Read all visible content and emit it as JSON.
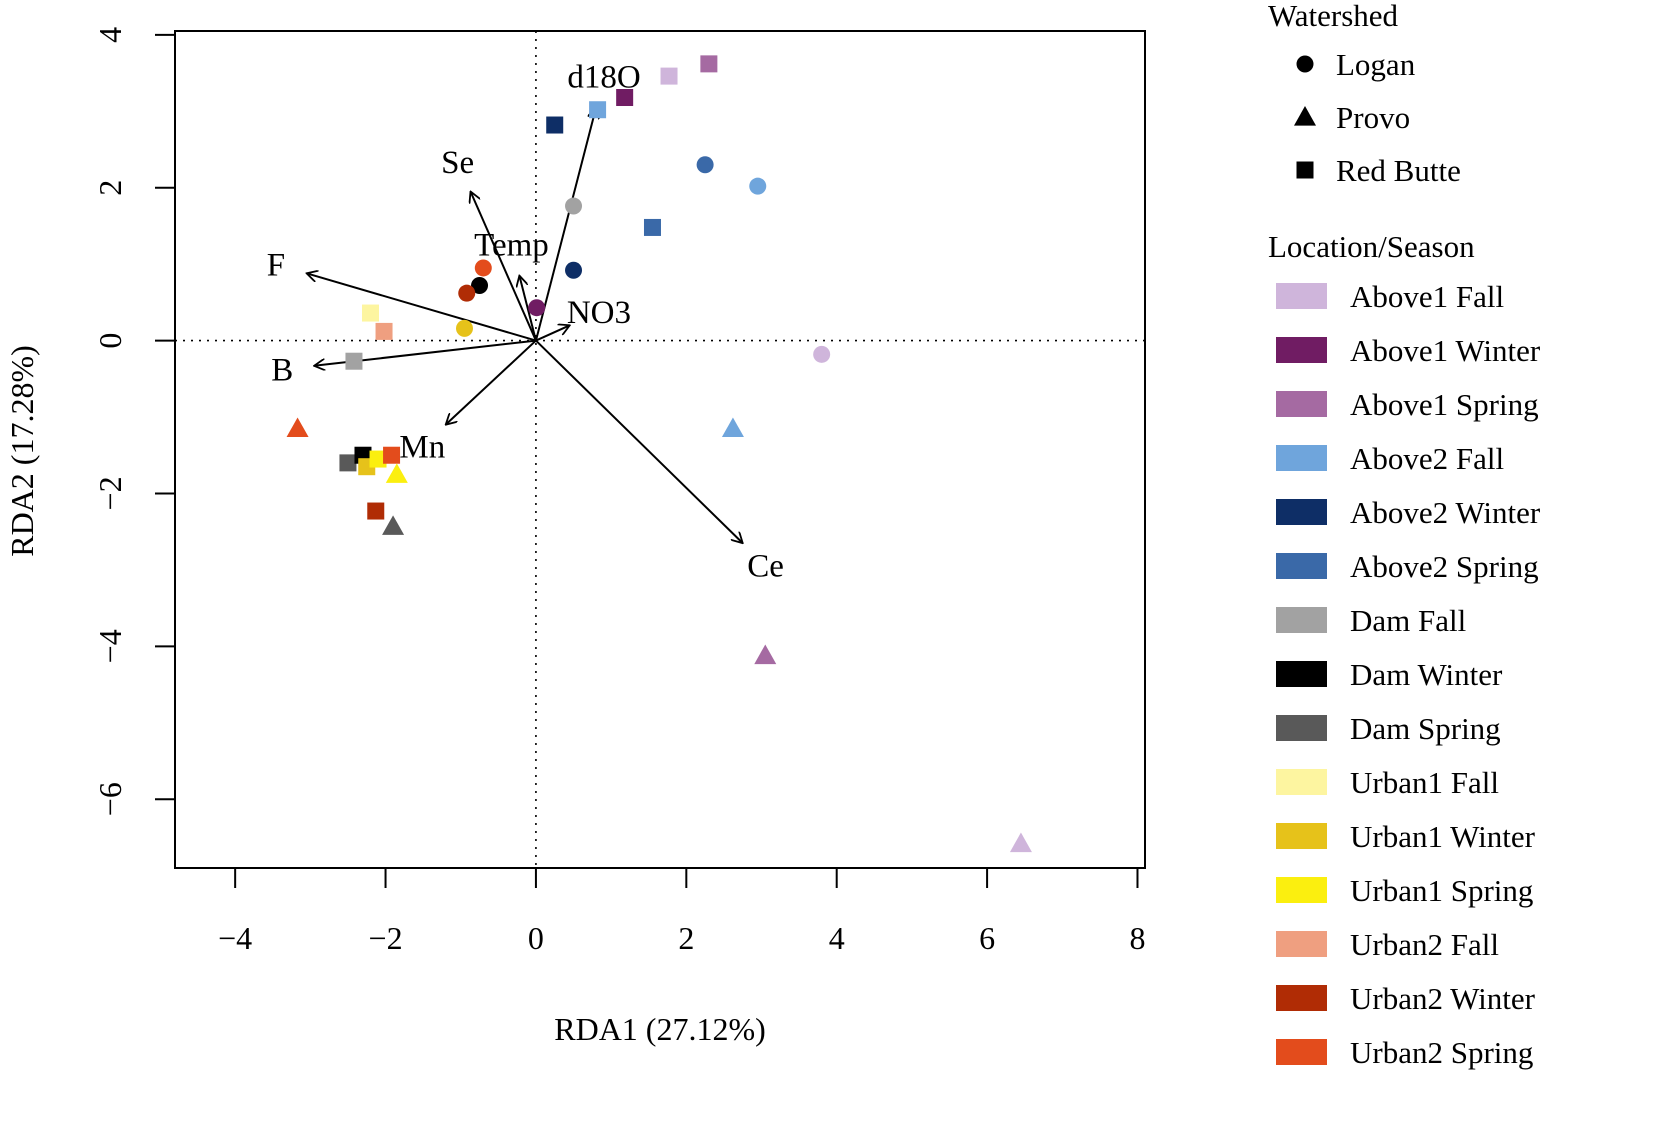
{
  "chart_data": {
    "type": "scatter",
    "subtype": "RDA biplot",
    "xlabel": "RDA1 (27.12%)",
    "ylabel": "RDA2 (17.28%)",
    "xlim": [
      -4.8,
      8.1
    ],
    "ylim": [
      -6.9,
      4.05
    ],
    "xticks": [
      -4,
      -2,
      0,
      2,
      4,
      6,
      8
    ],
    "yticks": [
      -6,
      -4,
      -2,
      0,
      2,
      4
    ],
    "zero_lines": "dotted",
    "watershed_legend": {
      "title": "Watershed",
      "items": [
        {
          "label": "Logan",
          "shape": "circle"
        },
        {
          "label": "Provo",
          "shape": "triangle"
        },
        {
          "label": "Red Butte",
          "shape": "square"
        }
      ]
    },
    "location_legend": {
      "title": "Location/Season",
      "items": [
        {
          "label": "Above1 Fall",
          "color": "#cfb5db"
        },
        {
          "label": "Above1 Winter",
          "color": "#701c63"
        },
        {
          "label": "Above1 Spring",
          "color": "#a56aa2"
        },
        {
          "label": "Above2 Fall",
          "color": "#6fa5dc"
        },
        {
          "label": "Above2 Winter",
          "color": "#0e2e66"
        },
        {
          "label": "Above2 Spring",
          "color": "#3a69a8"
        },
        {
          "label": "Dam Fall",
          "color": "#a2a2a2"
        },
        {
          "label": "Dam Winter",
          "color": "#000000"
        },
        {
          "label": "Dam Spring",
          "color": "#595959"
        },
        {
          "label": "Urban1 Fall",
          "color": "#fdf5a0"
        },
        {
          "label": "Urban1 Winter",
          "color": "#e6c21a"
        },
        {
          "label": "Urban1 Spring",
          "color": "#fbef0f"
        },
        {
          "label": "Urban2 Fall",
          "color": "#ef9f80"
        },
        {
          "label": "Urban2 Winter",
          "color": "#b02c05"
        },
        {
          "label": "Urban2 Spring",
          "color": "#e34c1c"
        }
      ]
    },
    "vectors": [
      {
        "label": "d18O",
        "x": 0.8,
        "y": 3.05
      },
      {
        "label": "Se",
        "x": -0.87,
        "y": 1.95
      },
      {
        "label": "Temp",
        "x": -0.22,
        "y": 0.85
      },
      {
        "label": "F",
        "x": -3.05,
        "y": 0.88
      },
      {
        "label": "NO3",
        "x": 0.45,
        "y": 0.2
      },
      {
        "label": "B",
        "x": -2.95,
        "y": -0.33
      },
      {
        "label": "Mn",
        "x": -1.2,
        "y": -1.1
      },
      {
        "label": "Ce",
        "x": 2.75,
        "y": -2.65
      }
    ],
    "points": [
      {
        "watershed": "Red Butte",
        "group": "Above1 Fall",
        "x": 1.77,
        "y": 3.46
      },
      {
        "watershed": "Red Butte",
        "group": "Above1 Spring",
        "x": 2.3,
        "y": 3.62
      },
      {
        "watershed": "Red Butte",
        "group": "Above1 Winter",
        "x": 1.18,
        "y": 3.18
      },
      {
        "watershed": "Red Butte",
        "group": "Above2 Fall",
        "x": 0.82,
        "y": 3.02
      },
      {
        "watershed": "Red Butte",
        "group": "Above2 Winter",
        "x": 0.25,
        "y": 2.82
      },
      {
        "watershed": "Red Butte",
        "group": "Above2 Spring",
        "x": 1.55,
        "y": 1.48
      },
      {
        "watershed": "Red Butte",
        "group": "Urban1 Fall",
        "x": -2.2,
        "y": 0.36
      },
      {
        "watershed": "Red Butte",
        "group": "Urban2 Fall",
        "x": -2.02,
        "y": 0.12
      },
      {
        "watershed": "Red Butte",
        "group": "Dam Fall",
        "x": -2.42,
        "y": -0.27
      },
      {
        "watershed": "Red Butte",
        "group": "Dam Spring",
        "x": -2.5,
        "y": -1.6
      },
      {
        "watershed": "Red Butte",
        "group": "Dam Winter",
        "x": -2.3,
        "y": -1.5
      },
      {
        "watershed": "Red Butte",
        "group": "Urban1 Winter",
        "x": -2.25,
        "y": -1.65
      },
      {
        "watershed": "Red Butte",
        "group": "Urban1 Spring",
        "x": -2.1,
        "y": -1.55
      },
      {
        "watershed": "Red Butte",
        "group": "Urban2 Spring",
        "x": -1.92,
        "y": -1.5
      },
      {
        "watershed": "Red Butte",
        "group": "Urban2 Winter",
        "x": -2.13,
        "y": -2.23
      },
      {
        "watershed": "Logan",
        "group": "Above2 Spring",
        "x": 2.25,
        "y": 2.3
      },
      {
        "watershed": "Logan",
        "group": "Above2 Fall",
        "x": 2.95,
        "y": 2.02
      },
      {
        "watershed": "Logan",
        "group": "Dam Fall",
        "x": 0.5,
        "y": 1.76
      },
      {
        "watershed": "Logan",
        "group": "Above2 Winter",
        "x": 0.5,
        "y": 0.92
      },
      {
        "watershed": "Logan",
        "group": "Urban2 Spring",
        "x": -0.7,
        "y": 0.95
      },
      {
        "watershed": "Logan",
        "group": "Dam Winter",
        "x": -0.75,
        "y": 0.72
      },
      {
        "watershed": "Logan",
        "group": "Urban2 Winter",
        "x": -0.92,
        "y": 0.62
      },
      {
        "watershed": "Logan",
        "group": "Above1 Winter",
        "x": 0.01,
        "y": 0.43
      },
      {
        "watershed": "Logan",
        "group": "Urban1 Winter",
        "x": -0.95,
        "y": 0.16
      },
      {
        "watershed": "Logan",
        "group": "Above1 Fall",
        "x": 3.8,
        "y": -0.18
      },
      {
        "watershed": "Provo",
        "group": "Urban2 Spring",
        "x": -3.17,
        "y": -1.15
      },
      {
        "watershed": "Provo",
        "group": "Urban1 Spring",
        "x": -1.85,
        "y": -1.75
      },
      {
        "watershed": "Provo",
        "group": "Dam Spring",
        "x": -1.9,
        "y": -2.43
      },
      {
        "watershed": "Provo",
        "group": "Above2 Fall",
        "x": 2.62,
        "y": -1.15
      },
      {
        "watershed": "Provo",
        "group": "Above1 Spring",
        "x": 3.05,
        "y": -4.12
      },
      {
        "watershed": "Provo",
        "group": "Above1 Fall",
        "x": 6.45,
        "y": -6.58
      }
    ]
  }
}
